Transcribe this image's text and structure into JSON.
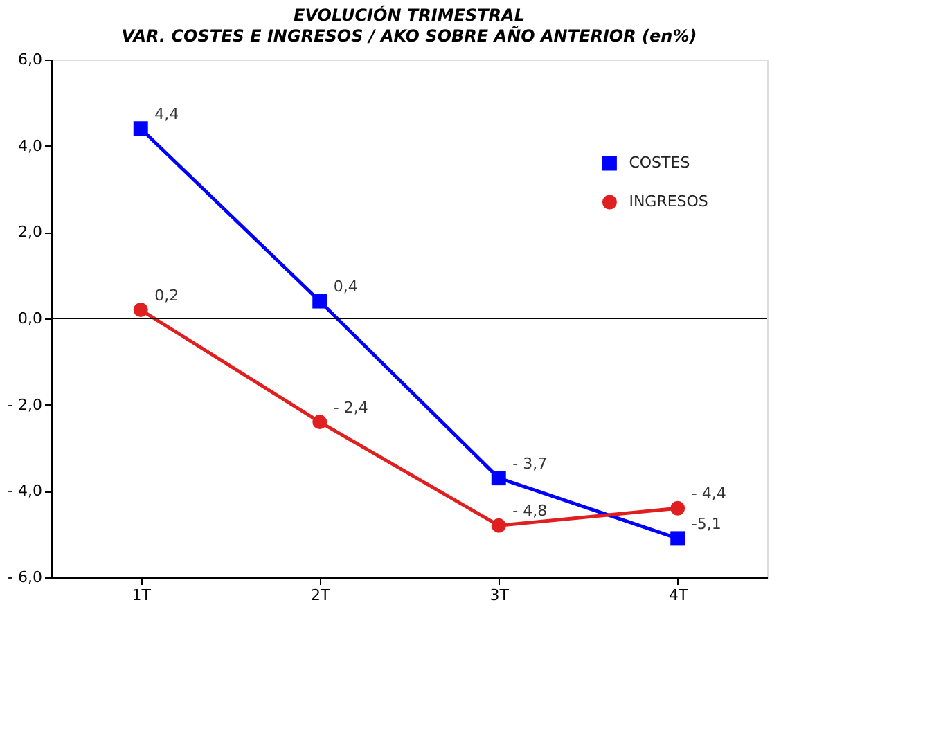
{
  "chart_data": {
    "type": "line",
    "title": "EVOLUCIÓN TRIMESTRAL",
    "subtitle": "VAR. COSTES E INGRESOS / AKO SOBRE AÑO ANTERIOR (en%)",
    "categories": [
      "1T",
      "2T",
      "3T",
      "4T"
    ],
    "series": [
      {
        "name": "COSTES",
        "color": "#0000ff",
        "marker": "square",
        "values": [
          4.4,
          0.4,
          -3.7,
          -5.1
        ],
        "value_labels": [
          "4,4",
          "0,4",
          "- 3,7",
          "-5,1"
        ]
      },
      {
        "name": "INGRESOS",
        "color": "#e02020",
        "marker": "circle",
        "values": [
          0.2,
          -2.4,
          -4.8,
          -4.4
        ],
        "value_labels": [
          "0,2",
          "- 2,4",
          "- 4,8",
          "- 4,4"
        ]
      }
    ],
    "ylim": [
      -6,
      6
    ],
    "yticks": [
      {
        "value": -6,
        "label": "- 6,0"
      },
      {
        "value": -4,
        "label": "- 4,0"
      },
      {
        "value": -2,
        "label": "- 2,0"
      },
      {
        "value": 0,
        "label": "0,0"
      },
      {
        "value": 2,
        "label": "2,0"
      },
      {
        "value": 4,
        "label": "4,0"
      },
      {
        "value": 6,
        "label": "6,0"
      }
    ],
    "ref_lines": [
      {
        "axis": "y",
        "value": 0,
        "label": null,
        "color": "#000000"
      }
    ],
    "grid": false,
    "legend": "top right",
    "line_style": "solid"
  }
}
